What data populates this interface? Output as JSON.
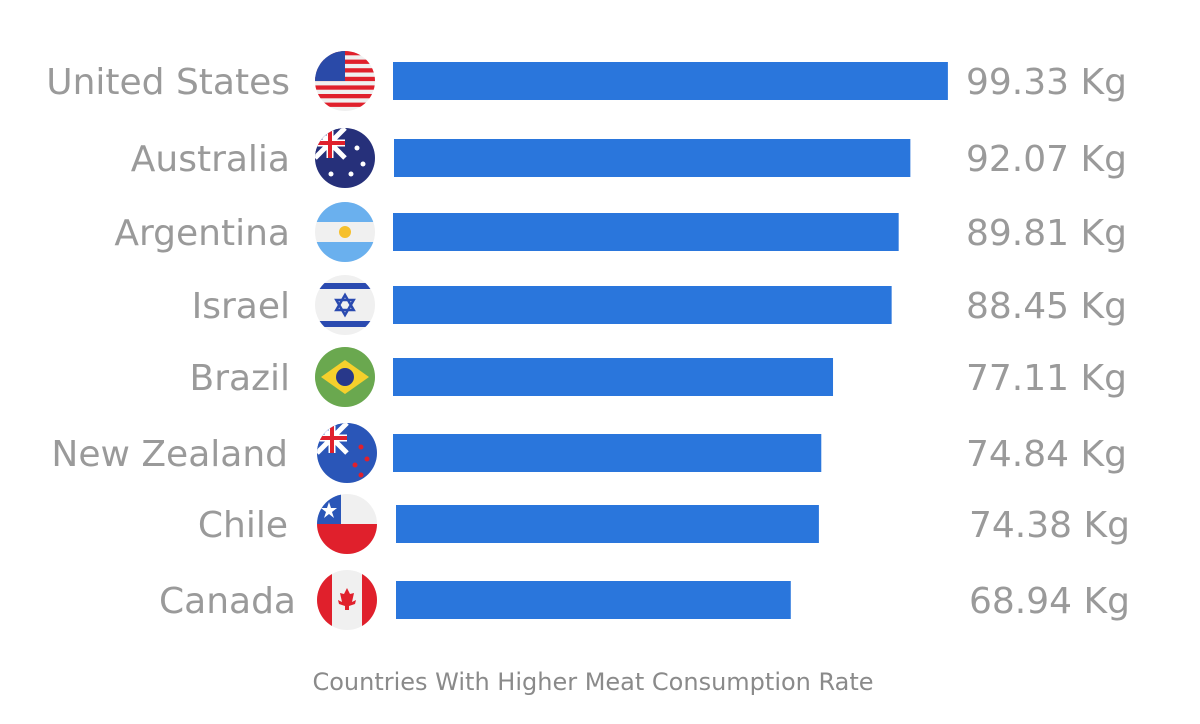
{
  "chart_data": {
    "type": "bar",
    "orientation": "horizontal",
    "title": "Countries With Higher Meat Consumption Rate",
    "unit": "Kg",
    "categories": [
      "United States",
      "Australia",
      "Argentina",
      "Israel",
      "Brazil",
      "New Zealand",
      "Chile",
      "Canada"
    ],
    "values": [
      99.33,
      92.07,
      89.81,
      88.45,
      77.11,
      74.84,
      74.38,
      68.94
    ],
    "value_labels": [
      "99.33 Kg",
      "92.07 Kg",
      "89.81 Kg",
      "88.45 Kg",
      "77.11 Kg",
      "74.84 Kg",
      "74.38 Kg",
      "68.94 Kg"
    ],
    "flag_icons": [
      "us-flag-icon",
      "australia-flag-icon",
      "argentina-flag-icon",
      "israel-flag-icon",
      "brazil-flag-icon",
      "new-zealand-flag-icon",
      "chile-flag-icon",
      "canada-flag-icon"
    ],
    "bar_color": "#2a76dc",
    "grid": false,
    "legend": "none"
  }
}
